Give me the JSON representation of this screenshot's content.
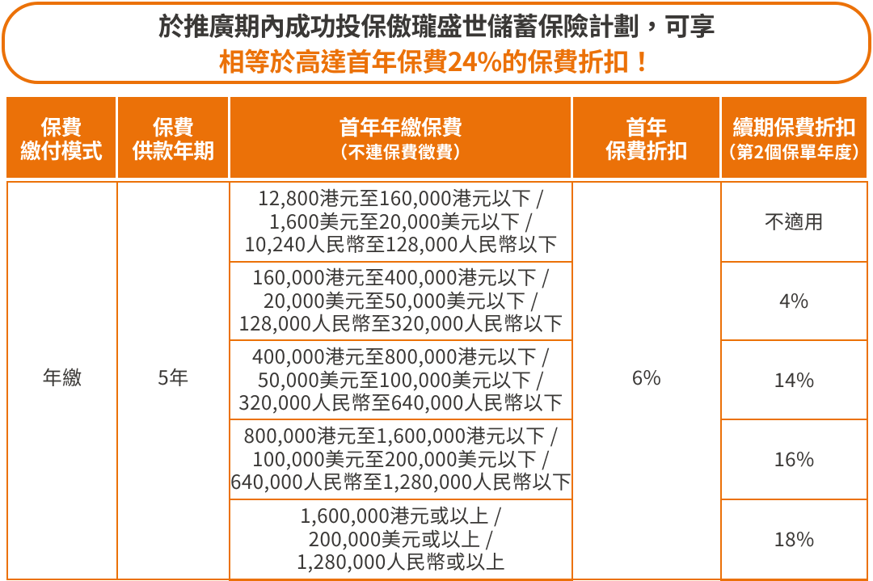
{
  "banner": {
    "line1": "於推廣期內成功投保傲瓏盛世儲蓄保險計劃，可享",
    "line2": "相等於高達首年保費24%的保費折扣！"
  },
  "table": {
    "header": [
      {
        "line1": "保費",
        "line2": "繳付模式"
      },
      {
        "line1": "保費",
        "line2": "供款年期"
      },
      {
        "line1": "首年年繳保費",
        "line2": "（不連保費徵費）"
      },
      {
        "line1": "首年",
        "line2": "保費折扣"
      },
      {
        "line1": "續期保費折扣",
        "line2": "（第2個保單年度）"
      }
    ],
    "payment_mode": "年繳",
    "payment_term": "5年",
    "first_year_discount": "6%",
    "rows": [
      {
        "premium_lines": [
          "12,800港元至160,000港元以下 /",
          "1,600美元至20,000美元以下 /",
          "10,240人民幣至128,000人民幣以下"
        ],
        "renewal_discount": "不適用"
      },
      {
        "premium_lines": [
          "160,000港元至400,000港元以下 /",
          "20,000美元至50,000美元以下 /",
          "128,000人民幣至320,000人民幣以下"
        ],
        "renewal_discount": "4%"
      },
      {
        "premium_lines": [
          "400,000港元至800,000港元以下 /",
          "50,000美元至100,000美元以下 /",
          "320,000人民幣至640,000人民幣以下"
        ],
        "renewal_discount": "14%"
      },
      {
        "premium_lines": [
          "800,000港元至1,600,000港元以下 /",
          "100,000美元至200,000美元以下 /",
          "640,000人民幣至1,280,000人民幣以下"
        ],
        "renewal_discount": "16%"
      },
      {
        "premium_lines": [
          "1,600,000港元或以上 /",
          "200,000美元或以上 /",
          "1,280,000人民幣或以上"
        ],
        "renewal_discount": "18%"
      }
    ]
  },
  "colors": {
    "orange": "#EB7108",
    "text": "#3A3836",
    "background": "#FFFFFF"
  }
}
